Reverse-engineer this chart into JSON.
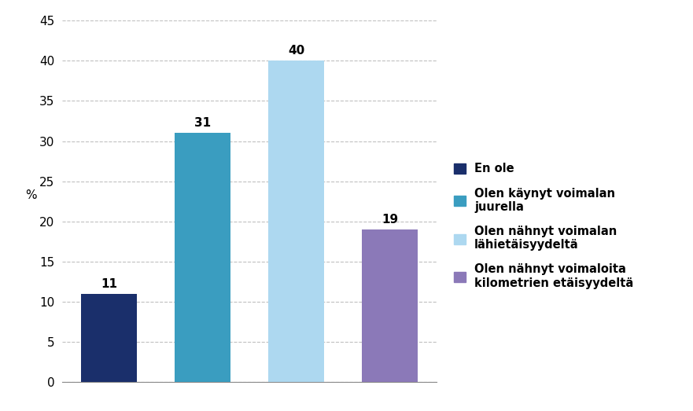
{
  "categories": [
    "En ole",
    "Olen käynyt voimalan\njuurella",
    "Olen nähnyt voimalan\nlähietäisyydeltä",
    "Olen nähnyt voimaloita\nkilometrien etäisyydeltä"
  ],
  "values": [
    11,
    31,
    40,
    19
  ],
  "bar_colors": [
    "#1a2f6b",
    "#3a9dc0",
    "#add8f0",
    "#8b79b8"
  ],
  "legend_labels": [
    "En ole",
    "Olen käynyt voimalan\njuurella",
    "Olen nähnyt voimalan\nlähietäisyydeltä",
    "Olen nähnyt voimaloita\nkilometrien etäisyydeltä"
  ],
  "ylabel": "%",
  "ylim": [
    0,
    45
  ],
  "yticks": [
    0,
    5,
    10,
    15,
    20,
    25,
    30,
    35,
    40,
    45
  ],
  "grid_color": "#c0c0c0",
  "label_fontsize": 11,
  "tick_fontsize": 11,
  "value_fontsize": 11,
  "background_color": "#ffffff",
  "bar_width": 0.6
}
